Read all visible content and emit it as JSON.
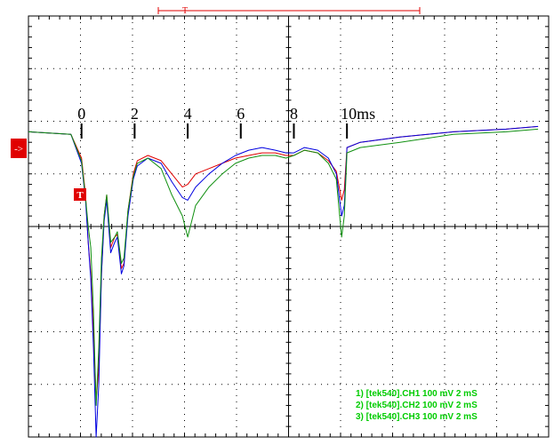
{
  "chart_data": {
    "type": "line",
    "time_markers": [
      {
        "t": 0,
        "label": "0"
      },
      {
        "t": 2,
        "label": "2"
      },
      {
        "t": 4,
        "label": "4"
      },
      {
        "t": 6,
        "label": "6"
      },
      {
        "t": 8,
        "label": "8"
      },
      {
        "t": 10,
        "label": "10ms"
      }
    ],
    "xlim": [
      -2,
      17.6
    ],
    "ylim": [
      -4,
      4
    ],
    "grid": true,
    "trigger_label": "T",
    "trigger_marker_label": "T",
    "channel_marker_label": "->",
    "legend": [
      "1) [tek540].CH1  100 mV   2 mS",
      "2) [tek540].CH2  100 mV   2 mS",
      "3) [tek540].CH3  100 mV   2 mS"
    ],
    "series": [
      {
        "color": "#e00000",
        "x": [
          -2.0,
          -0.4,
          0.0,
          0.15,
          0.25,
          0.35,
          0.45,
          0.55,
          0.65,
          0.75,
          0.85,
          0.95,
          1.1,
          1.25,
          1.35,
          1.5,
          1.6,
          1.75,
          1.95,
          2.1,
          2.5,
          3.0,
          3.4,
          3.8,
          4.0,
          4.3,
          4.8,
          5.3,
          5.8,
          6.3,
          6.8,
          7.3,
          7.7,
          8.0,
          8.4,
          8.9,
          9.3,
          9.6,
          9.8,
          9.9,
          10.0,
          10.5,
          12.0,
          14.0,
          16.0,
          17.2
        ],
        "y": [
          1.8,
          1.75,
          1.3,
          0.6,
          -0.3,
          -0.9,
          -2.0,
          -3.3,
          -2.7,
          -0.9,
          0.2,
          0.6,
          -0.4,
          -0.2,
          -0.15,
          -0.8,
          -0.7,
          0.3,
          1.0,
          1.25,
          1.35,
          1.25,
          1.0,
          0.75,
          0.8,
          1.0,
          1.1,
          1.2,
          1.3,
          1.35,
          1.4,
          1.4,
          1.35,
          1.35,
          1.45,
          1.4,
          1.25,
          1.05,
          0.5,
          0.7,
          1.5,
          1.6,
          1.7,
          1.8,
          1.85,
          1.9
        ]
      },
      {
        "color": "#0000e0",
        "x": [
          -2.0,
          -0.4,
          0.0,
          0.15,
          0.25,
          0.35,
          0.45,
          0.55,
          0.65,
          0.75,
          0.85,
          0.95,
          1.1,
          1.25,
          1.35,
          1.5,
          1.6,
          1.75,
          1.95,
          2.1,
          2.5,
          3.0,
          3.4,
          3.8,
          4.0,
          4.3,
          4.8,
          5.3,
          5.8,
          6.3,
          6.8,
          7.3,
          7.7,
          8.0,
          8.4,
          8.9,
          9.3,
          9.6,
          9.8,
          9.9,
          10.0,
          10.5,
          12.0,
          14.0,
          16.0,
          17.2
        ],
        "y": [
          1.8,
          1.75,
          1.2,
          0.5,
          -0.3,
          -1.0,
          -2.3,
          -4.0,
          -3.0,
          -0.9,
          0.1,
          0.5,
          -0.5,
          -0.3,
          -0.2,
          -0.9,
          -0.75,
          0.2,
          0.9,
          1.15,
          1.3,
          1.2,
          0.85,
          0.55,
          0.5,
          0.75,
          1.0,
          1.2,
          1.35,
          1.45,
          1.5,
          1.45,
          1.4,
          1.4,
          1.5,
          1.45,
          1.3,
          1.0,
          0.2,
          0.4,
          1.5,
          1.6,
          1.7,
          1.8,
          1.85,
          1.9
        ]
      },
      {
        "color": "#109010",
        "x": [
          -2.0,
          -0.4,
          0.0,
          0.15,
          0.25,
          0.35,
          0.45,
          0.55,
          0.65,
          0.75,
          0.85,
          0.95,
          1.1,
          1.25,
          1.35,
          1.5,
          1.6,
          1.75,
          1.95,
          2.1,
          2.5,
          3.0,
          3.4,
          3.8,
          4.0,
          4.3,
          4.8,
          5.3,
          5.8,
          6.3,
          6.8,
          7.3,
          7.7,
          8.0,
          8.4,
          8.9,
          9.3,
          9.6,
          9.8,
          9.9,
          10.0,
          10.5,
          12.0,
          14.0,
          16.0,
          17.2
        ],
        "y": [
          1.8,
          1.75,
          1.25,
          0.55,
          0.0,
          -0.4,
          -1.6,
          -3.4,
          -2.3,
          -0.6,
          0.2,
          0.6,
          -0.3,
          -0.2,
          -0.1,
          -0.7,
          -0.6,
          0.3,
          0.95,
          1.2,
          1.3,
          1.1,
          0.6,
          0.2,
          -0.2,
          0.4,
          0.75,
          1.0,
          1.2,
          1.3,
          1.35,
          1.35,
          1.3,
          1.35,
          1.45,
          1.4,
          1.2,
          0.9,
          -0.2,
          0.2,
          1.4,
          1.5,
          1.6,
          1.75,
          1.8,
          1.85
        ]
      }
    ]
  }
}
